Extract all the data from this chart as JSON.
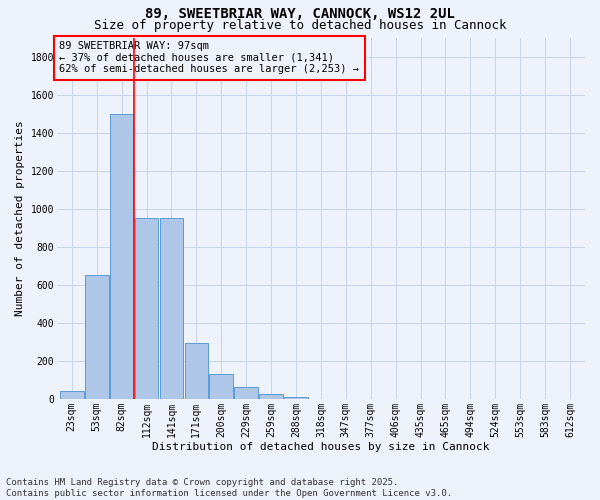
{
  "title_line1": "89, SWEETBRIAR WAY, CANNOCK, WS12 2UL",
  "title_line2": "Size of property relative to detached houses in Cannock",
  "xlabel": "Distribution of detached houses by size in Cannock",
  "ylabel": "Number of detached properties",
  "bar_labels": [
    "23sqm",
    "53sqm",
    "82sqm",
    "112sqm",
    "141sqm",
    "171sqm",
    "200sqm",
    "229sqm",
    "259sqm",
    "288sqm",
    "318sqm",
    "347sqm",
    "377sqm",
    "406sqm",
    "435sqm",
    "465sqm",
    "494sqm",
    "524sqm",
    "553sqm",
    "583sqm",
    "612sqm"
  ],
  "bar_values": [
    40,
    650,
    1500,
    950,
    950,
    295,
    130,
    65,
    25,
    10,
    0,
    0,
    0,
    0,
    0,
    0,
    0,
    0,
    0,
    0,
    0
  ],
  "bar_color": "#aec6e8",
  "bar_edge_color": "#5b9bd5",
  "ylim": [
    0,
    1900
  ],
  "yticks": [
    0,
    200,
    400,
    600,
    800,
    1000,
    1200,
    1400,
    1600,
    1800
  ],
  "property_line_x": 2.5,
  "annotation_box_text": "89 SWEETBRIAR WAY: 97sqm\n← 37% of detached houses are smaller (1,341)\n62% of semi-detached houses are larger (2,253) →",
  "footnote_line1": "Contains HM Land Registry data © Crown copyright and database right 2025.",
  "footnote_line2": "Contains public sector information licensed under the Open Government Licence v3.0.",
  "bg_color": "#eef2fa",
  "grid_color": "#c8d4e8",
  "title_fontsize": 10,
  "subtitle_fontsize": 9,
  "axis_label_fontsize": 8,
  "tick_fontsize": 7,
  "annotation_fontsize": 7.5,
  "footnote_fontsize": 6.5
}
